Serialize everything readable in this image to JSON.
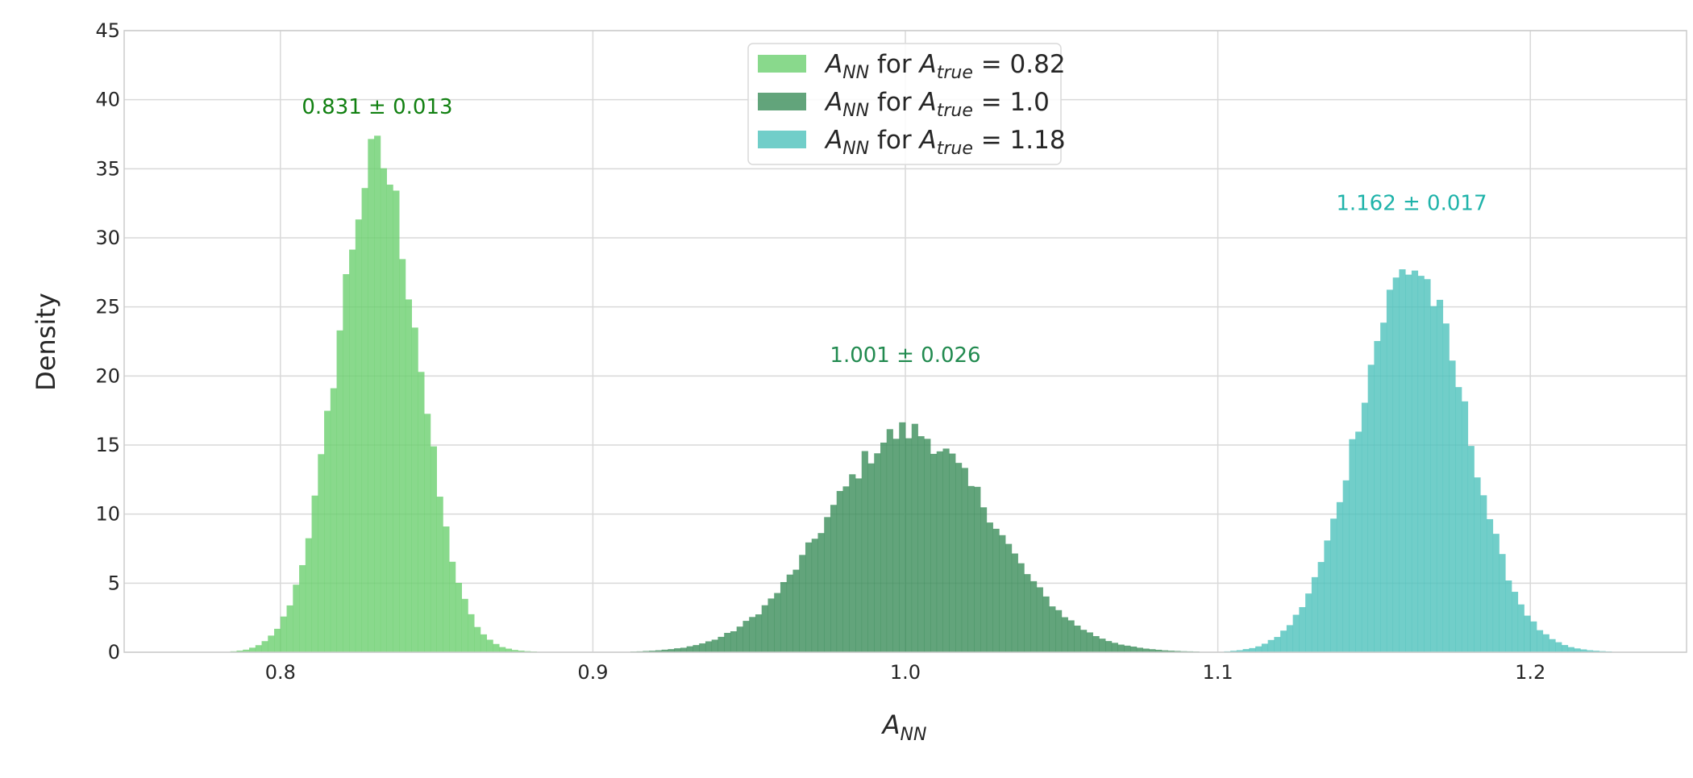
{
  "chart_data": {
    "type": "histogram",
    "xlabel": "A_NN",
    "ylabel": "Density",
    "xlim": [
      0.75,
      1.25
    ],
    "ylim": [
      0,
      45
    ],
    "x_ticks": [
      0.8,
      0.9,
      1.0,
      1.1,
      1.2
    ],
    "y_ticks": [
      0,
      5,
      10,
      15,
      20,
      25,
      30,
      35,
      40,
      45
    ],
    "grid": true,
    "legend_placement": "upper-center",
    "series": [
      {
        "legend": {
          "var": "A",
          "var_sub": "NN",
          "mid": " for ",
          "var2": "A",
          "var2_sub": "true",
          "eq": " = 0.82"
        },
        "color": "#6ccf6f",
        "mean": 0.831,
        "std": 0.013,
        "peak_density": 35.8,
        "annotation": "0.831 ± 0.013",
        "annotation_color": "#118011",
        "annotation_pos": {
          "x": 0.831,
          "y": 39
        }
      },
      {
        "legend": {
          "var": "A",
          "var_sub": "NN",
          "mid": " for ",
          "var2": "A",
          "var2_sub": "true",
          "eq": " = 1.0"
        },
        "color": "#3b8d5a",
        "mean": 1.001,
        "std": 0.026,
        "peak_density": 16.0,
        "annotation": "1.001 ± 0.026",
        "annotation_color": "#218a4f",
        "annotation_pos": {
          "x": 1.0,
          "y": 21
        }
      },
      {
        "legend": {
          "var": "A",
          "var_sub": "NN",
          "mid": " for ",
          "var2": "A",
          "var2_sub": "true",
          "eq": " = 1.18"
        },
        "color": "#4ec2bb",
        "mean": 1.162,
        "std": 0.017,
        "peak_density": 27.9,
        "annotation": "1.162 ± 0.017",
        "annotation_color": "#1fb3aa",
        "annotation_pos": {
          "x": 1.162,
          "y": 32
        }
      }
    ]
  }
}
